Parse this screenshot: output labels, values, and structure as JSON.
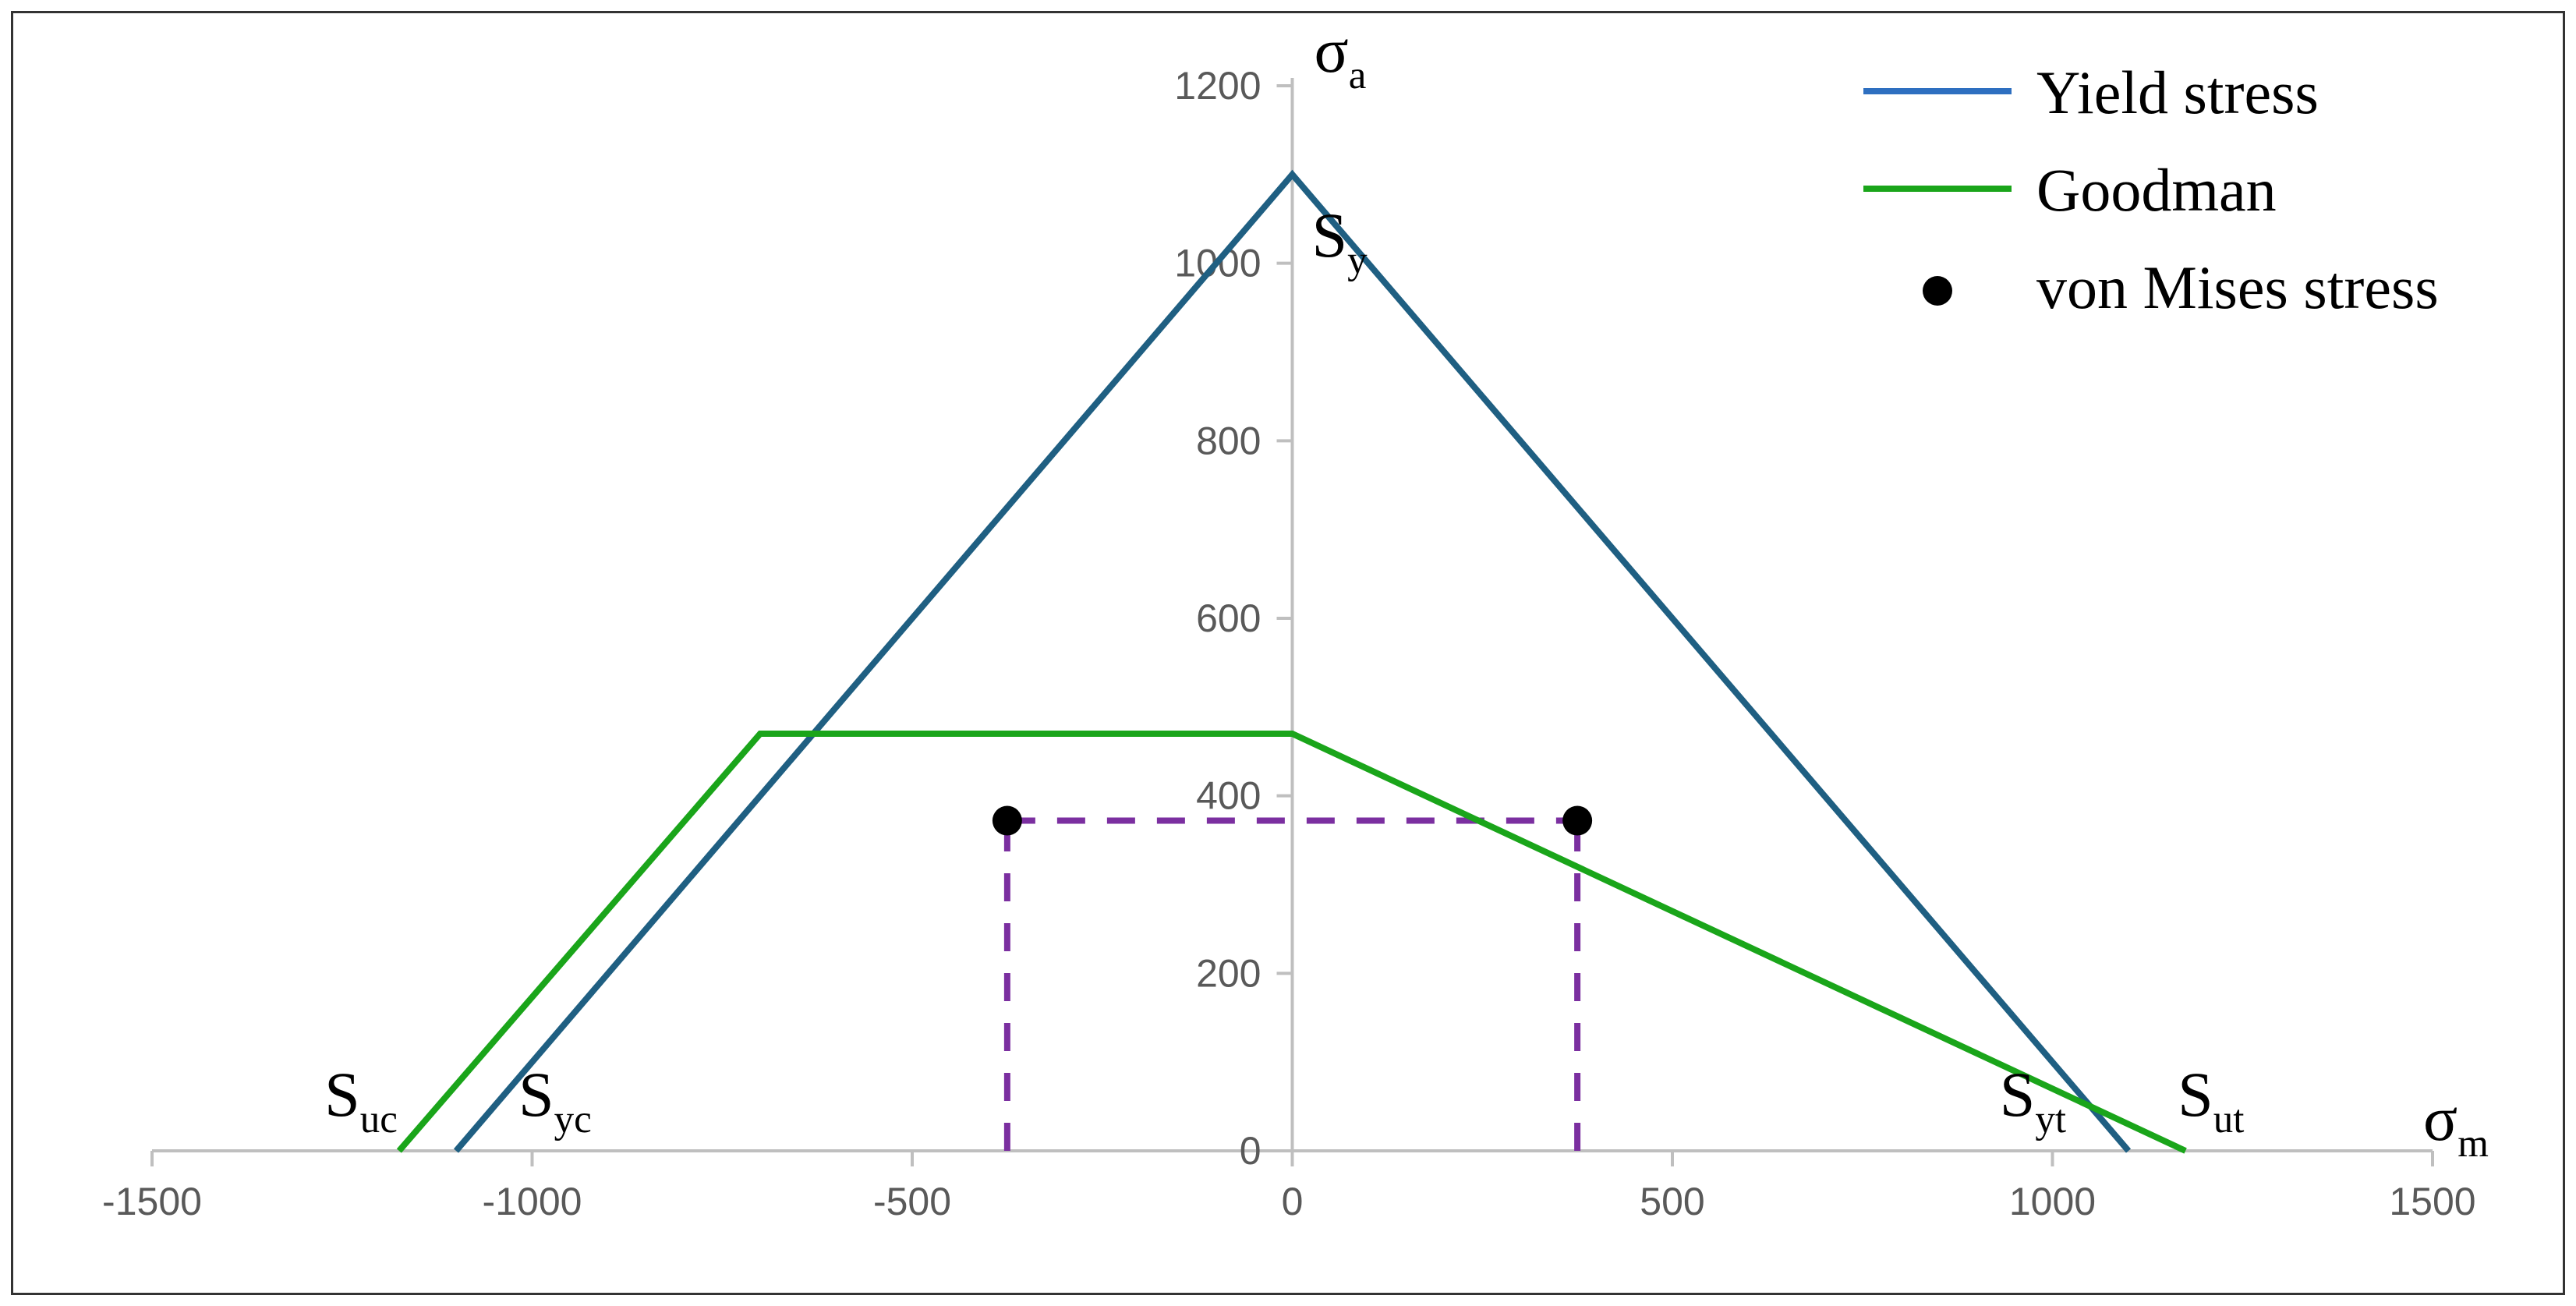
{
  "chart_data": {
    "type": "line",
    "x_ticks": [
      "-1500",
      "-1000",
      "-500",
      "0",
      "500",
      "1000",
      "1500"
    ],
    "y_ticks": [
      "0",
      "200",
      "400",
      "600",
      "800",
      "1000",
      "1200"
    ],
    "xlim": [
      -1500,
      1500
    ],
    "ylim": [
      0,
      1200
    ],
    "axis_labels": {
      "y": {
        "base": "σ",
        "sub": "a"
      },
      "x": {
        "base": "σ",
        "sub": "m"
      }
    },
    "annotations": [
      {
        "base": "S",
        "sub": "y",
        "x": 0,
        "y": 1100
      },
      {
        "base": "S",
        "sub": "uc",
        "x": -1175,
        "y": 0
      },
      {
        "base": "S",
        "sub": "yc",
        "x": -1100,
        "y": 0
      },
      {
        "base": "S",
        "sub": "yt",
        "x": 1100,
        "y": 0
      },
      {
        "base": "S",
        "sub": "ut",
        "x": 1175,
        "y": 0
      }
    ],
    "series": [
      {
        "name": "Yield stress",
        "color": "#1f5f82",
        "style": "solid",
        "x": [
          -1100,
          0,
          1100
        ],
        "y": [
          0,
          1100,
          0
        ]
      },
      {
        "name": "Goodman",
        "color": "#1aa51a",
        "style": "solid",
        "x": [
          -1175,
          -700,
          0,
          1175
        ],
        "y": [
          0,
          470,
          470,
          0
        ]
      },
      {
        "name": "von Mises stress",
        "color": "#000000",
        "style": "markers",
        "x": [
          -375,
          375
        ],
        "y": [
          372,
          372
        ]
      }
    ],
    "guides": {
      "color": "#7b2fa0",
      "style": "dashed",
      "segments": [
        {
          "x": [
            -375,
            -375
          ],
          "y": [
            0,
            372
          ]
        },
        {
          "x": [
            -375,
            375
          ],
          "y": [
            372,
            372
          ]
        },
        {
          "x": [
            375,
            375
          ],
          "y": [
            0,
            372
          ]
        }
      ]
    },
    "legend_position": "top-right",
    "grid": false
  }
}
